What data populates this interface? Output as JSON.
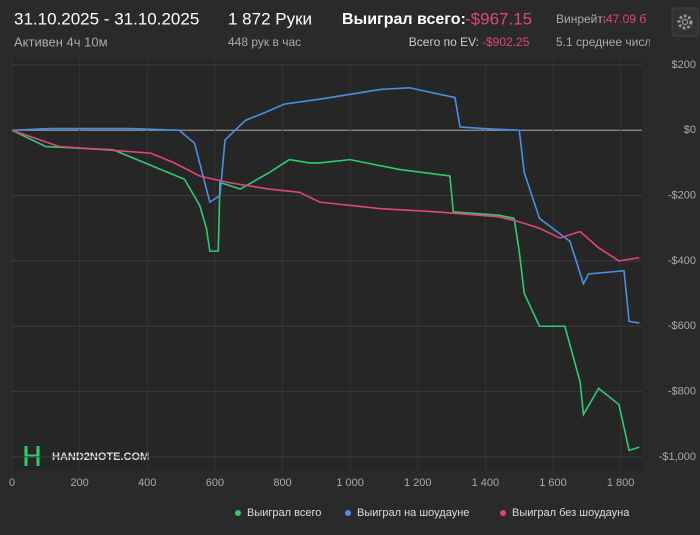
{
  "header": {
    "date_range": "31.10.2025 - 31.10.2025",
    "active": "Активен 4ч 10м",
    "hands": "1 872 Руки",
    "hands_per_hour": "448 рук в час",
    "won_label": "Выиграл всего:",
    "won_value": "-$967.15",
    "ev_label": "Всего по EV:",
    "ev_value": "-$902.25",
    "winrate_label": "Винрейт:",
    "winrate_value": "-47.09 б",
    "avg_label": "5.1 среднее числ"
  },
  "watermark": "HAND2NOTE.COM",
  "chart_data": {
    "type": "line",
    "xlim": [
      0,
      1872
    ],
    "ylim": [
      -1040,
      215
    ],
    "xticks": [
      0,
      200,
      400,
      600,
      800,
      {
        "value": 1000,
        "label": "1 000"
      },
      {
        "value": 1200,
        "label": "1 200"
      },
      {
        "value": 1400,
        "label": "1 400"
      },
      {
        "value": 1600,
        "label": "1 600"
      },
      {
        "value": 1800,
        "label": "1 800"
      }
    ],
    "yticks": [
      {
        "value": 200,
        "label": "$200"
      },
      {
        "value": 0,
        "label": "$0"
      },
      {
        "value": -200,
        "label": "-$200"
      },
      {
        "value": -400,
        "label": "-$400"
      },
      {
        "value": -600,
        "label": "-$600"
      },
      {
        "value": -800,
        "label": "-$800"
      },
      {
        "value": -1000,
        "label": "-$1,000"
      }
    ],
    "grid": true,
    "series": [
      {
        "name": "Выиграл всего",
        "color": "#2ecc71",
        "x": [
          0,
          100,
          300,
          510,
          555,
          575,
          585,
          610,
          615,
          675,
          760,
          820,
          880,
          910,
          1000,
          1145,
          1295,
          1305,
          1440,
          1485,
          1500,
          1515,
          1560,
          1635,
          1680,
          1690,
          1735,
          1795,
          1825,
          1855
        ],
        "values": [
          0,
          -50,
          -60,
          -150,
          -230,
          -300,
          -370,
          -370,
          -160,
          -180,
          -130,
          -90,
          -100,
          -100,
          -90,
          -120,
          -140,
          -250,
          -260,
          -270,
          -370,
          -500,
          -600,
          -600,
          -770,
          -870,
          -790,
          -840,
          -980,
          -970
        ]
      },
      {
        "name": "Выиграл на шоудауне",
        "color": "#4a90e2",
        "x": [
          0,
          110,
          350,
          495,
          540,
          585,
          615,
          630,
          690,
          750,
          805,
          910,
          1000,
          1090,
          1175,
          1310,
          1325,
          1395,
          1500,
          1515,
          1560,
          1650,
          1690,
          1705,
          1810,
          1825,
          1855
        ],
        "values": [
          0,
          5,
          5,
          0,
          -40,
          -220,
          -200,
          -30,
          30,
          55,
          80,
          95,
          110,
          125,
          130,
          100,
          10,
          5,
          0,
          -130,
          -270,
          -340,
          -470,
          -440,
          -430,
          -585,
          -590
        ]
      },
      {
        "name": "Выиграл без шоудауна",
        "color": "#e0457b",
        "x": [
          0,
          140,
          410,
          480,
          555,
          640,
          760,
          850,
          910,
          1090,
          1260,
          1440,
          1500,
          1560,
          1620,
          1680,
          1735,
          1795,
          1855
        ],
        "values": [
          0,
          -50,
          -70,
          -100,
          -140,
          -160,
          -180,
          -190,
          -220,
          -240,
          -250,
          -265,
          -280,
          -300,
          -330,
          -310,
          -360,
          -400,
          -390
        ]
      }
    ]
  }
}
